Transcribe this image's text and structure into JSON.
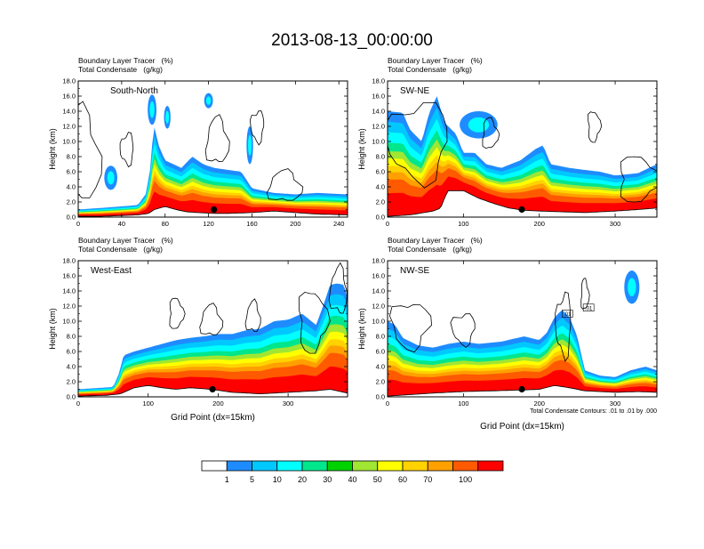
{
  "title": "2013-08-13_00:00:00",
  "chart_data": [
    {
      "type": "heatmap",
      "panel": "South-North",
      "label_line1": "Boundary Layer Tracer   (%)",
      "label_line2": "Total Condensate   (g/kg)",
      "ylabel": "Height (km)",
      "xlabel": "",
      "xlim": [
        0,
        248
      ],
      "ylim": [
        0,
        18
      ],
      "xticks": [
        0,
        40,
        80,
        120,
        160,
        200,
        240
      ],
      "yticks": [
        "0.0",
        "2.0",
        "4.0",
        "6.0",
        "8.0",
        "10.0",
        "12.0",
        "14.0",
        "16.0",
        "18.0"
      ],
      "terrain": [
        [
          0,
          0.1
        ],
        [
          20,
          0.1
        ],
        [
          40,
          0.2
        ],
        [
          55,
          0.3
        ],
        [
          65,
          0.5
        ],
        [
          70,
          1.0
        ],
        [
          80,
          1.4
        ],
        [
          90,
          1.0
        ],
        [
          100,
          0.7
        ],
        [
          110,
          0.6
        ],
        [
          125,
          0.5
        ],
        [
          140,
          0.5
        ],
        [
          160,
          0.6
        ],
        [
          180,
          0.8
        ],
        [
          200,
          0.6
        ],
        [
          220,
          0.4
        ],
        [
          248,
          0.3
        ]
      ],
      "marker": [
        125,
        1.0
      ],
      "tracer_top": [
        [
          0,
          1.0
        ],
        [
          30,
          1.3
        ],
        [
          55,
          1.6
        ],
        [
          62,
          3.0
        ],
        [
          66,
          6.0
        ],
        [
          68,
          9.5
        ],
        [
          70,
          12.0
        ],
        [
          74,
          9.5
        ],
        [
          80,
          7.5
        ],
        [
          95,
          6.5
        ],
        [
          105,
          8.0
        ],
        [
          115,
          7.0
        ],
        [
          125,
          6.5
        ],
        [
          140,
          6.2
        ],
        [
          150,
          6.0
        ],
        [
          160,
          3.8
        ],
        [
          180,
          3.2
        ],
        [
          200,
          3.0
        ],
        [
          220,
          3.2
        ],
        [
          248,
          3.0
        ]
      ],
      "extra_blobs": [
        [
          30,
          5.2,
          6,
          1.6
        ],
        [
          68,
          14.2,
          4,
          2.0
        ],
        [
          82,
          13.2,
          3,
          1.5
        ],
        [
          120,
          15.4,
          4,
          1.0
        ],
        [
          158,
          9.5,
          3,
          2.5
        ]
      ],
      "contours": [
        [
          0,
          8.0,
          20,
          6
        ],
        [
          45,
          9.0,
          6,
          2
        ],
        [
          128,
          10.0,
          10,
          3
        ],
        [
          165,
          12.0,
          6,
          2
        ],
        [
          190,
          4.0,
          15,
          2
        ]
      ]
    },
    {
      "type": "heatmap",
      "panel": "SW-NE",
      "label_line1": "Boundary Layer Tracer   (%)",
      "label_line2": "Total Condensate   (g/kg)",
      "ylabel": "Height (km)",
      "xlabel": "",
      "xlim": [
        0,
        355
      ],
      "ylim": [
        0,
        18
      ],
      "xticks": [
        0,
        100,
        200,
        300
      ],
      "yticks": [
        "0.0",
        "2.0",
        "4.0",
        "6.0",
        "8.0",
        "10.0",
        "12.0",
        "14.0",
        "16.0",
        "18.0"
      ],
      "terrain": [
        [
          0,
          0.1
        ],
        [
          30,
          0.3
        ],
        [
          60,
          0.8
        ],
        [
          70,
          1.2
        ],
        [
          75,
          2.5
        ],
        [
          80,
          3.5
        ],
        [
          100,
          3.5
        ],
        [
          120,
          2.5
        ],
        [
          140,
          1.8
        ],
        [
          160,
          1.2
        ],
        [
          180,
          0.9
        ],
        [
          200,
          0.8
        ],
        [
          230,
          0.7
        ],
        [
          260,
          0.6
        ],
        [
          300,
          0.8
        ],
        [
          330,
          1.0
        ],
        [
          355,
          1.2
        ]
      ],
      "marker": [
        177,
        1.0
      ],
      "tracer_top": [
        [
          0,
          14.0
        ],
        [
          20,
          13.8
        ],
        [
          30,
          11.5
        ],
        [
          45,
          10.0
        ],
        [
          55,
          13.8
        ],
        [
          65,
          16.0
        ],
        [
          75,
          12.5
        ],
        [
          90,
          11.0
        ],
        [
          100,
          8.5
        ],
        [
          115,
          8.5
        ],
        [
          130,
          7.0
        ],
        [
          150,
          6.5
        ],
        [
          175,
          7.5
        ],
        [
          195,
          9.0
        ],
        [
          205,
          9.5
        ],
        [
          215,
          7.0
        ],
        [
          240,
          6.5
        ],
        [
          255,
          6.3
        ],
        [
          280,
          6.0
        ],
        [
          300,
          5.5
        ],
        [
          330,
          5.8
        ],
        [
          355,
          7.0
        ]
      ],
      "extra_blobs": [
        [
          120,
          12.2,
          25,
          1.8
        ]
      ],
      "contours": [
        [
          40,
          10.0,
          40,
          5
        ],
        [
          135,
          11.0,
          10,
          2
        ],
        [
          272,
          12.0,
          8,
          2
        ],
        [
          330,
          5.0,
          25,
          3
        ]
      ]
    },
    {
      "type": "heatmap",
      "panel": "West-East",
      "label_line1": "Boundary Layer Tracer   (%)",
      "label_line2": "Total Condensate   (g/kg)",
      "ylabel": "Height (km)",
      "xlabel": "Grid Point (dx=15km)",
      "xlim": [
        0,
        385
      ],
      "ylim": [
        0,
        18
      ],
      "xticks": [
        0,
        100,
        200,
        300
      ],
      "yticks": [
        "0.0",
        "2.0",
        "4.0",
        "6.0",
        "8.0",
        "10.0",
        "12.0",
        "14.0",
        "16.0",
        "18.0"
      ],
      "terrain": [
        [
          0,
          0.1
        ],
        [
          40,
          0.2
        ],
        [
          60,
          0.4
        ],
        [
          80,
          1.2
        ],
        [
          100,
          1.5
        ],
        [
          120,
          1.2
        ],
        [
          140,
          1.0
        ],
        [
          160,
          1.2
        ],
        [
          190,
          1.0
        ],
        [
          220,
          0.6
        ],
        [
          260,
          0.4
        ],
        [
          300,
          0.6
        ],
        [
          340,
          0.8
        ],
        [
          360,
          1.0
        ],
        [
          385,
          0.5
        ]
      ],
      "marker": [
        192,
        1.0
      ],
      "tracer_top": [
        [
          0,
          1.0
        ],
        [
          50,
          1.3
        ],
        [
          58,
          3.0
        ],
        [
          65,
          5.5
        ],
        [
          80,
          6.0
        ],
        [
          100,
          6.5
        ],
        [
          120,
          7.0
        ],
        [
          140,
          7.5
        ],
        [
          160,
          7.8
        ],
        [
          180,
          8.0
        ],
        [
          200,
          8.3
        ],
        [
          220,
          8.3
        ],
        [
          240,
          8.8
        ],
        [
          260,
          9.0
        ],
        [
          280,
          10.0
        ],
        [
          300,
          10.2
        ],
        [
          320,
          11.0
        ],
        [
          340,
          9.5
        ],
        [
          350,
          12.0
        ],
        [
          360,
          14.8
        ],
        [
          370,
          15.0
        ],
        [
          380,
          14.8
        ],
        [
          385,
          13.0
        ]
      ],
      "extra_blobs": [],
      "contours": [
        [
          140,
          11.0,
          10,
          2
        ],
        [
          190,
          10.0,
          15,
          2
        ],
        [
          250,
          10.5,
          10,
          2
        ],
        [
          335,
          10.0,
          20,
          4
        ],
        [
          372,
          14.0,
          12,
          3
        ]
      ]
    },
    {
      "type": "heatmap",
      "panel": "NW-SE",
      "label_line1": "Boundary Layer Tracer   (%)",
      "label_line2": "Total Condensate   (g/kg)",
      "ylabel": "Height (km)",
      "xlabel": "Grid Point (dx=15km)",
      "xlim": [
        0,
        355
      ],
      "ylim": [
        0,
        18
      ],
      "xticks": [
        0,
        100,
        200,
        300
      ],
      "yticks": [
        "0.0",
        "2.0",
        "4.0",
        "6.0",
        "8.0",
        "10.0",
        "12.0",
        "14.0",
        "16.0",
        "18.0"
      ],
      "terrain": [
        [
          0,
          0.1
        ],
        [
          30,
          0.3
        ],
        [
          60,
          0.5
        ],
        [
          100,
          0.7
        ],
        [
          140,
          0.8
        ],
        [
          175,
          0.9
        ],
        [
          200,
          1.0
        ],
        [
          220,
          1.5
        ],
        [
          240,
          1.2
        ],
        [
          260,
          0.8
        ],
        [
          300,
          0.6
        ],
        [
          330,
          0.7
        ],
        [
          355,
          0.6
        ]
      ],
      "marker": [
        177,
        1.0
      ],
      "tracer_top": [
        [
          0,
          10.0
        ],
        [
          10,
          9.5
        ],
        [
          20,
          7.8
        ],
        [
          40,
          6.8
        ],
        [
          60,
          6.5
        ],
        [
          80,
          7.0
        ],
        [
          100,
          7.3
        ],
        [
          120,
          7.0
        ],
        [
          150,
          7.3
        ],
        [
          180,
          8.0
        ],
        [
          200,
          7.5
        ],
        [
          210,
          8.5
        ],
        [
          220,
          10.5
        ],
        [
          230,
          11.5
        ],
        [
          240,
          10.5
        ],
        [
          250,
          8.0
        ],
        [
          260,
          3.5
        ],
        [
          280,
          2.8
        ],
        [
          300,
          2.6
        ],
        [
          320,
          3.5
        ],
        [
          340,
          4.0
        ],
        [
          355,
          3.5
        ]
      ],
      "extra_blobs": [
        [
          322,
          14.5,
          10,
          2.2
        ]
      ],
      "contours": [
        [
          30,
          9.5,
          25,
          3
        ],
        [
          100,
          9.0,
          15,
          2
        ],
        [
          232,
          9.5,
          10,
          4
        ],
        [
          260,
          13.5,
          5,
          2
        ]
      ],
      "contour_labels": [
        [
          237,
          10.7,
          ".01"
        ],
        [
          265,
          11.5,
          ".01"
        ]
      ],
      "footnote": "Total Condensate Contours: .01 to .01 by .000"
    }
  ],
  "colorbar": {
    "ticks": [
      "1",
      "5",
      "10",
      "20",
      "30",
      "40",
      "50",
      "60",
      "70",
      "100"
    ],
    "colors": [
      "#ffffff",
      "#1e8cff",
      "#00c8ff",
      "#00ffff",
      "#00e68c",
      "#00d200",
      "#a0e632",
      "#ffff00",
      "#ffd200",
      "#ffa000",
      "#ff5a00",
      "#ff0000"
    ]
  }
}
